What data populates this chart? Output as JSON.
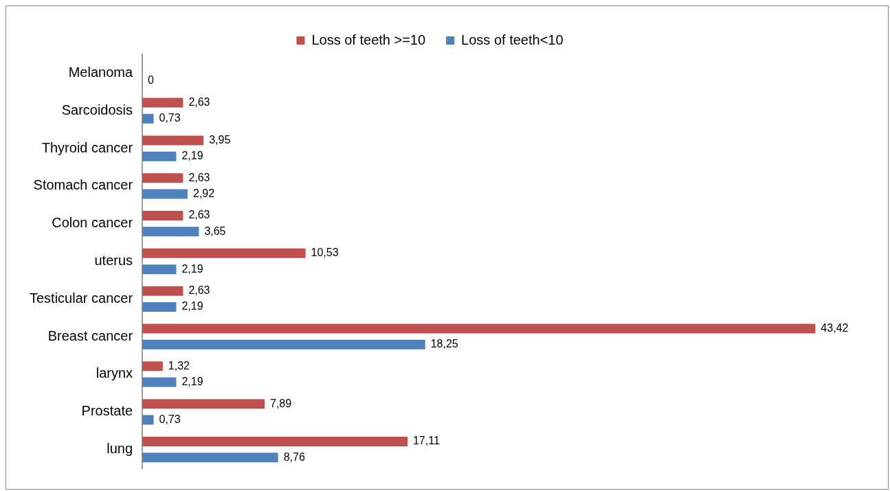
{
  "chart_data": {
    "type": "bar",
    "orientation": "horizontal",
    "legend": "top",
    "tick_labels": "y",
    "categories": [
      "Melanoma",
      "Sarcoidosis",
      "Thyroid cancer",
      "Stomach cancer",
      "Colon cancer",
      "uterus",
      "Testicular cancer",
      "Breast cancer",
      "larynx",
      "Prostate",
      "lung"
    ],
    "series": [
      {
        "name": "Loss of teeth >=10",
        "color": "#c0504d",
        "values": [
          null,
          2.63,
          3.95,
          2.63,
          2.63,
          10.53,
          2.63,
          43.42,
          1.32,
          7.89,
          17.11
        ],
        "value_labels": [
          null,
          "2,63",
          "3,95",
          "2,63",
          "2,63",
          "10,53",
          "2,63",
          "43,42",
          "1,32",
          "7,89",
          "17,11"
        ]
      },
      {
        "name": "Loss of teeth<10",
        "color": "#4f81bd",
        "values": [
          0,
          0.73,
          2.19,
          2.92,
          3.65,
          2.19,
          2.19,
          18.25,
          2.19,
          0.73,
          8.76
        ],
        "value_labels": [
          "0",
          "0,73",
          "2,19",
          "2,92",
          "3,65",
          "2,19",
          "2,19",
          "18,25",
          "2,19",
          "0,73",
          "8,76"
        ]
      }
    ]
  }
}
